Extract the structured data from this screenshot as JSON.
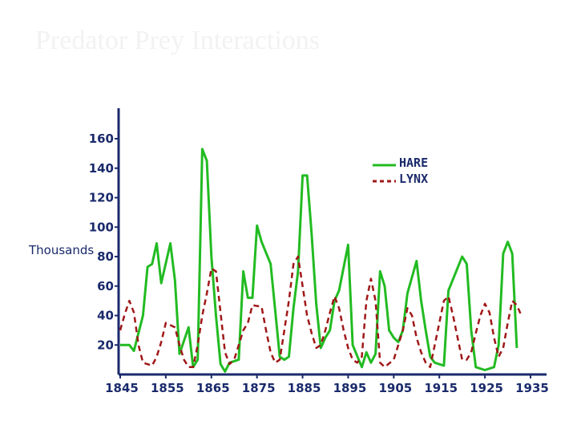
{
  "slide": {
    "title": "Predator Prey Interactions"
  },
  "colors": {
    "hare": "#22bb22",
    "lynx": "#a01818",
    "axis": "#1a2a6c"
  },
  "chart_data": {
    "type": "line",
    "title": "",
    "xlabel": "",
    "ylabel": "Thousands",
    "xlim": [
      1845,
      1937
    ],
    "ylim": [
      0,
      160
    ],
    "x_ticks": [
      1845,
      1855,
      1865,
      1875,
      1885,
      1895,
      1905,
      1915,
      1925,
      1935
    ],
    "y_ticks": [
      20,
      40,
      60,
      80,
      100,
      120,
      140,
      160
    ],
    "legend_position": "top-right",
    "series": [
      {
        "name": "HARE",
        "style": "solid",
        "color": "#22bb22",
        "points": [
          [
            1845,
            20
          ],
          [
            1847,
            20
          ],
          [
            1848,
            16
          ],
          [
            1850,
            40
          ],
          [
            1851,
            73
          ],
          [
            1852,
            75
          ],
          [
            1853,
            89
          ],
          [
            1854,
            62
          ],
          [
            1856,
            89
          ],
          [
            1857,
            64
          ],
          [
            1858,
            14
          ],
          [
            1860,
            32
          ],
          [
            1861,
            5
          ],
          [
            1862,
            10
          ],
          [
            1863,
            153
          ],
          [
            1864,
            145
          ],
          [
            1865,
            80
          ],
          [
            1866,
            40
          ],
          [
            1867,
            7
          ],
          [
            1868,
            2
          ],
          [
            1869,
            8
          ],
          [
            1871,
            10
          ],
          [
            1872,
            70
          ],
          [
            1873,
            52
          ],
          [
            1874,
            52
          ],
          [
            1875,
            101
          ],
          [
            1876,
            90
          ],
          [
            1878,
            75
          ],
          [
            1880,
            12
          ],
          [
            1881,
            10
          ],
          [
            1882,
            12
          ],
          [
            1883,
            45
          ],
          [
            1884,
            70
          ],
          [
            1885,
            135
          ],
          [
            1886,
            135
          ],
          [
            1887,
            95
          ],
          [
            1888,
            48
          ],
          [
            1889,
            18
          ],
          [
            1890,
            25
          ],
          [
            1891,
            30
          ],
          [
            1892,
            50
          ],
          [
            1893,
            57
          ],
          [
            1895,
            88
          ],
          [
            1896,
            20
          ],
          [
            1898,
            5
          ],
          [
            1899,
            15
          ],
          [
            1900,
            8
          ],
          [
            1901,
            14
          ],
          [
            1902,
            70
          ],
          [
            1903,
            60
          ],
          [
            1904,
            30
          ],
          [
            1905,
            25
          ],
          [
            1906,
            22
          ],
          [
            1907,
            30
          ],
          [
            1908,
            55
          ],
          [
            1910,
            77
          ],
          [
            1911,
            50
          ],
          [
            1912,
            30
          ],
          [
            1913,
            12
          ],
          [
            1914,
            8
          ],
          [
            1916,
            6
          ],
          [
            1917,
            57
          ],
          [
            1920,
            80
          ],
          [
            1921,
            75
          ],
          [
            1922,
            30
          ],
          [
            1923,
            5
          ],
          [
            1925,
            3
          ],
          [
            1927,
            5
          ],
          [
            1928,
            20
          ],
          [
            1929,
            82
          ],
          [
            1930,
            90
          ],
          [
            1931,
            82
          ],
          [
            1932,
            18
          ]
        ]
      },
      {
        "name": "LYNX",
        "style": "dashed",
        "color": "#a01818",
        "points": [
          [
            1845,
            30
          ],
          [
            1846,
            41
          ],
          [
            1847,
            50
          ],
          [
            1848,
            42
          ],
          [
            1849,
            20
          ],
          [
            1850,
            8
          ],
          [
            1852,
            6
          ],
          [
            1853,
            12
          ],
          [
            1854,
            22
          ],
          [
            1855,
            35
          ],
          [
            1857,
            32
          ],
          [
            1858,
            20
          ],
          [
            1859,
            10
          ],
          [
            1860,
            5
          ],
          [
            1861,
            5
          ],
          [
            1862,
            20
          ],
          [
            1863,
            40
          ],
          [
            1864,
            55
          ],
          [
            1865,
            72
          ],
          [
            1866,
            70
          ],
          [
            1867,
            42
          ],
          [
            1868,
            15
          ],
          [
            1869,
            7
          ],
          [
            1870,
            10
          ],
          [
            1872,
            30
          ],
          [
            1873,
            35
          ],
          [
            1874,
            47
          ],
          [
            1876,
            46
          ],
          [
            1877,
            30
          ],
          [
            1878,
            15
          ],
          [
            1879,
            8
          ],
          [
            1880,
            10
          ],
          [
            1881,
            30
          ],
          [
            1882,
            50
          ],
          [
            1883,
            75
          ],
          [
            1884,
            80
          ],
          [
            1885,
            60
          ],
          [
            1886,
            40
          ],
          [
            1887,
            28
          ],
          [
            1888,
            18
          ],
          [
            1889,
            20
          ],
          [
            1890,
            30
          ],
          [
            1891,
            42
          ],
          [
            1892,
            53
          ],
          [
            1893,
            45
          ],
          [
            1894,
            30
          ],
          [
            1895,
            18
          ],
          [
            1896,
            10
          ],
          [
            1897,
            8
          ],
          [
            1898,
            12
          ],
          [
            1899,
            50
          ],
          [
            1900,
            65
          ],
          [
            1901,
            50
          ],
          [
            1902,
            8
          ],
          [
            1903,
            5
          ],
          [
            1905,
            10
          ],
          [
            1907,
            30
          ],
          [
            1908,
            45
          ],
          [
            1909,
            40
          ],
          [
            1910,
            25
          ],
          [
            1911,
            15
          ],
          [
            1912,
            8
          ],
          [
            1913,
            5
          ],
          [
            1914,
            20
          ],
          [
            1915,
            35
          ],
          [
            1916,
            50
          ],
          [
            1917,
            53
          ],
          [
            1918,
            40
          ],
          [
            1919,
            25
          ],
          [
            1920,
            10
          ],
          [
            1921,
            10
          ],
          [
            1922,
            15
          ],
          [
            1923,
            28
          ],
          [
            1924,
            40
          ],
          [
            1925,
            48
          ],
          [
            1926,
            42
          ],
          [
            1927,
            25
          ],
          [
            1928,
            12
          ],
          [
            1929,
            18
          ],
          [
            1930,
            35
          ],
          [
            1931,
            50
          ],
          [
            1932,
            47
          ],
          [
            1933,
            40
          ]
        ]
      }
    ]
  }
}
